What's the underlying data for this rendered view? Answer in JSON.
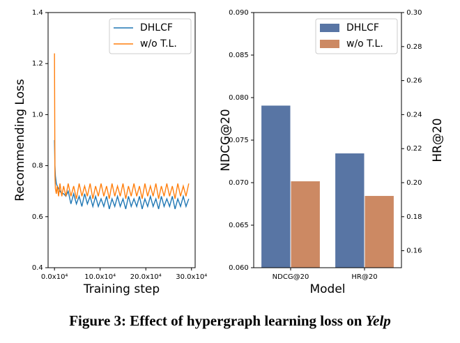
{
  "chart_data": [
    {
      "type": "line",
      "xlabel": "Training step",
      "ylabel": "Recommending Loss",
      "x": [
        0,
        1000,
        2000,
        4000,
        6000,
        9000,
        12000,
        16000,
        20000,
        25000,
        30000,
        36000,
        42000,
        48000,
        54000,
        60000,
        66000,
        72000,
        78000,
        84000,
        90000,
        96000,
        102000,
        108000,
        114000,
        120000,
        126000,
        132000,
        138000,
        144000,
        150000,
        156000,
        162000,
        168000,
        174000,
        180000,
        186000,
        192000,
        198000,
        204000,
        210000,
        216000,
        222000,
        228000,
        234000,
        240000,
        246000,
        252000,
        258000,
        264000,
        270000,
        276000,
        282000,
        288000,
        294000
      ],
      "series": [
        {
          "name": "DHLCF",
          "color": "#1f77b4",
          "values": [
            0.9,
            0.8,
            0.76,
            0.73,
            0.72,
            0.71,
            0.7,
            0.69,
            0.69,
            0.68,
            0.7,
            0.65,
            0.69,
            0.65,
            0.68,
            0.64,
            0.69,
            0.65,
            0.68,
            0.64,
            0.68,
            0.64,
            0.67,
            0.64,
            0.68,
            0.63,
            0.67,
            0.64,
            0.68,
            0.64,
            0.67,
            0.63,
            0.68,
            0.64,
            0.67,
            0.64,
            0.68,
            0.63,
            0.67,
            0.64,
            0.68,
            0.64,
            0.67,
            0.63,
            0.68,
            0.64,
            0.67,
            0.64,
            0.68,
            0.63,
            0.67,
            0.64,
            0.68,
            0.64,
            0.67
          ]
        },
        {
          "name": "w/o T.L.",
          "color": "#ff7f0e",
          "values": [
            1.24,
            0.76,
            0.71,
            0.69,
            0.72,
            0.68,
            0.73,
            0.68,
            0.72,
            0.68,
            0.73,
            0.68,
            0.72,
            0.67,
            0.73,
            0.68,
            0.72,
            0.68,
            0.73,
            0.67,
            0.72,
            0.68,
            0.73,
            0.68,
            0.72,
            0.67,
            0.73,
            0.68,
            0.72,
            0.68,
            0.73,
            0.67,
            0.72,
            0.68,
            0.73,
            0.68,
            0.72,
            0.67,
            0.73,
            0.68,
            0.72,
            0.68,
            0.73,
            0.67,
            0.72,
            0.68,
            0.73,
            0.68,
            0.72,
            0.67,
            0.73,
            0.68,
            0.72,
            0.68,
            0.73
          ]
        }
      ],
      "xlim": [
        -14000,
        308000
      ],
      "xticks": [
        {
          "value": 0,
          "label": "0.0x10⁴"
        },
        {
          "value": 100000,
          "label": "10.0x10⁴"
        },
        {
          "value": 200000,
          "label": "20.0x10⁴"
        },
        {
          "value": 300000,
          "label": "30.0x10⁴"
        }
      ],
      "ylim": [
        0.4,
        1.4
      ],
      "yticks": [
        0.4,
        0.6,
        0.8,
        {
          "value": 1,
          "label": "1.0"
        },
        1.2,
        1.4
      ],
      "legend": "upper right"
    },
    {
      "type": "bar",
      "xlabel": "Model",
      "ylabel": "NDCG@20",
      "y2label": "HR@20",
      "categories": [
        "NDCG@20",
        "HR@20"
      ],
      "category_axes": [
        "y",
        "y2"
      ],
      "series": [
        {
          "name": "DHLCF",
          "color": "#5875a4",
          "values": [
            0.0791,
            0.2174
          ]
        },
        {
          "name": "w/o T.L.",
          "color": "#cc8963",
          "values": [
            0.0702,
            0.1924
          ]
        }
      ],
      "ylim": [
        0.06,
        0.09
      ],
      "yticks": [
        {
          "value": 0.06,
          "label": "0.060"
        },
        0.065,
        {
          "value": 0.07,
          "label": "0.070"
        },
        0.075,
        {
          "value": 0.08,
          "label": "0.080"
        },
        0.085,
        {
          "value": 0.09,
          "label": "0.090"
        }
      ],
      "y2lim": [
        0.15,
        0.3
      ],
      "y2ticks": [
        0.16,
        0.18,
        {
          "value": 0.2,
          "label": "0.20"
        },
        0.22,
        0.24,
        0.26,
        0.28,
        {
          "value": 0.3,
          "label": "0.30"
        }
      ],
      "legend": "upper right"
    }
  ],
  "caption": {
    "text": "Figure 3: Effect of hypergraph learning loss on ",
    "emphasis": "Yelp"
  }
}
